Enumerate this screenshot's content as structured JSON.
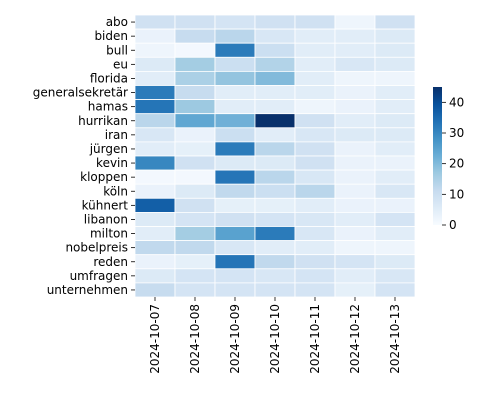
{
  "chart_data": {
    "type": "heatmap",
    "title": "",
    "xlabel": "",
    "ylabel": "",
    "x": [
      "2024-10-07",
      "2024-10-08",
      "2024-10-09",
      "2024-10-10",
      "2024-10-11",
      "2024-10-12",
      "2024-10-13"
    ],
    "y": [
      "abo",
      "biden",
      "bull",
      "eu",
      "florida",
      "generalsekretär",
      "hamas",
      "hurrikan",
      "iran",
      "jürgen",
      "kevin",
      "kloppen",
      "köln",
      "kühnert",
      "libanon",
      "milton",
      "nobelpreis",
      "reden",
      "umfragen",
      "unternehmen"
    ],
    "values": [
      [
        9,
        9,
        8,
        9,
        9,
        2,
        9
      ],
      [
        3,
        11,
        13,
        7,
        5,
        5,
        6
      ],
      [
        2,
        1,
        32,
        10,
        5,
        5,
        6
      ],
      [
        6,
        16,
        10,
        14,
        5,
        7,
        6
      ],
      [
        5,
        15,
        18,
        20,
        5,
        2,
        2
      ],
      [
        32,
        11,
        5,
        5,
        5,
        3,
        5
      ],
      [
        33,
        17,
        5,
        5,
        2,
        3,
        5
      ],
      [
        13,
        24,
        22,
        45,
        9,
        5,
        6
      ],
      [
        7,
        3,
        10,
        5,
        7,
        6,
        6
      ],
      [
        5,
        4,
        32,
        13,
        9,
        3,
        5
      ],
      [
        30,
        9,
        6,
        6,
        9,
        3,
        3
      ],
      [
        1,
        1,
        33,
        13,
        7,
        3,
        5
      ],
      [
        3,
        6,
        12,
        10,
        13,
        3,
        7
      ],
      [
        37,
        9,
        4,
        4,
        5,
        3,
        3
      ],
      [
        6,
        8,
        9,
        8,
        7,
        5,
        8
      ],
      [
        5,
        16,
        25,
        32,
        7,
        3,
        5
      ],
      [
        12,
        12,
        7,
        5,
        5,
        2,
        2
      ],
      [
        3,
        4,
        33,
        12,
        9,
        8,
        6
      ],
      [
        6,
        8,
        8,
        7,
        8,
        5,
        7
      ],
      [
        11,
        8,
        8,
        8,
        8,
        4,
        8
      ]
    ],
    "colorscale": "Blues",
    "vmin": 0,
    "vmax": 45,
    "colorbar_ticks": [
      0,
      10,
      20,
      30,
      40
    ],
    "grid": true
  }
}
